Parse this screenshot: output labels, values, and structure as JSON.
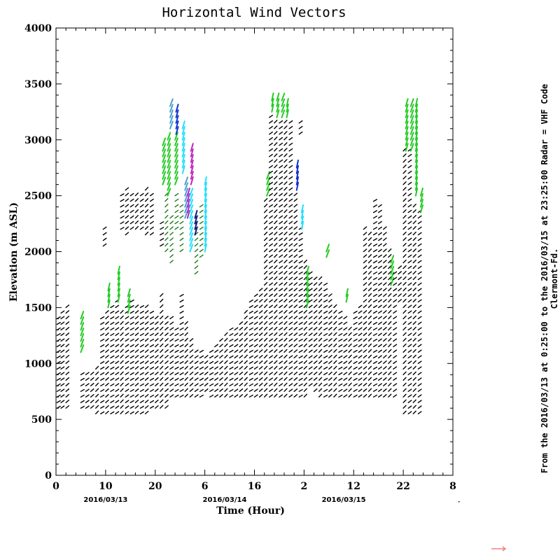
{
  "chart_data": {
    "type": "scatter",
    "title": "Horizontal Wind Vectors",
    "xlabel": "Time (Hour)",
    "ylabel": "Elevation (m ASL)",
    "x_ticks": [
      "0",
      "10",
      "20",
      "6",
      "16",
      "2",
      "12",
      "22",
      "8"
    ],
    "y_ticks": [
      "0",
      "500",
      "1000",
      "1500",
      "2000",
      "2500",
      "3000",
      "3500",
      "4000"
    ],
    "xlim": [
      0,
      80
    ],
    "ylim": [
      0,
      4000
    ],
    "date_labels": [
      {
        "text": "2016/03/13",
        "x": 10
      },
      {
        "text": "2016/03/14",
        "x": 34
      },
      {
        "text": "2016/03/15",
        "x": 58
      }
    ],
    "side_note_1": "From the 2016/03/13 at  0:25:00 to the 2016/03/15 at 23:25:00 Radar = VHF Code",
    "side_note_2": "Clermont-Fd.",
    "grid": false,
    "legend": "none",
    "colors": {
      "black": "#000000",
      "dark_green": "#1a7a1a",
      "green": "#22cc22",
      "cyan": "#22e0ff",
      "steel_blue": "#4aa0d0",
      "blue": "#1030d0",
      "navy": "#101880",
      "magenta": "#c020c0",
      "reference_arrow": "#f08080"
    },
    "columns": [
      {
        "x": 0.2,
        "y0": 600,
        "y1": 1400,
        "color": "black"
      },
      {
        "x": 1.0,
        "y0": 600,
        "y1": 1450,
        "color": "black"
      },
      {
        "x": 2.0,
        "y0": 600,
        "y1": 1500,
        "color": "black"
      },
      {
        "x": 5.0,
        "y0": 1100,
        "y1": 1400,
        "color": "green"
      },
      {
        "x": 5.0,
        "y0": 600,
        "y1": 900,
        "color": "black"
      },
      {
        "x": 6.0,
        "y0": 600,
        "y1": 900,
        "color": "black"
      },
      {
        "x": 7.0,
        "y0": 600,
        "y1": 900,
        "color": "black"
      },
      {
        "x": 8.0,
        "y0": 550,
        "y1": 950,
        "color": "black"
      },
      {
        "x": 9.0,
        "y0": 550,
        "y1": 1400,
        "color": "black"
      },
      {
        "x": 9.5,
        "y0": 2050,
        "y1": 2200,
        "color": "black"
      },
      {
        "x": 10.0,
        "y0": 550,
        "y1": 1450,
        "color": "black"
      },
      {
        "x": 10.5,
        "y0": 1500,
        "y1": 1650,
        "color": "green"
      },
      {
        "x": 11.0,
        "y0": 550,
        "y1": 1500,
        "color": "black"
      },
      {
        "x": 12.0,
        "y0": 550,
        "y1": 1550,
        "color": "black"
      },
      {
        "x": 12.5,
        "y0": 1550,
        "y1": 1800,
        "color": "green"
      },
      {
        "x": 13.0,
        "y0": 550,
        "y1": 1450,
        "color": "black"
      },
      {
        "x": 13.0,
        "y0": 2200,
        "y1": 2500,
        "color": "black"
      },
      {
        "x": 14.0,
        "y0": 550,
        "y1": 1500,
        "color": "black"
      },
      {
        "x": 14.0,
        "y0": 2150,
        "y1": 2550,
        "color": "black"
      },
      {
        "x": 14.5,
        "y0": 1450,
        "y1": 1600,
        "color": "green"
      },
      {
        "x": 15.0,
        "y0": 550,
        "y1": 1550,
        "color": "black"
      },
      {
        "x": 15.0,
        "y0": 2200,
        "y1": 2500,
        "color": "black"
      },
      {
        "x": 16.0,
        "y0": 550,
        "y1": 1500,
        "color": "black"
      },
      {
        "x": 16.0,
        "y0": 2200,
        "y1": 2500,
        "color": "black"
      },
      {
        "x": 17.0,
        "y0": 550,
        "y1": 1500,
        "color": "black"
      },
      {
        "x": 17.0,
        "y0": 2200,
        "y1": 2500,
        "color": "black"
      },
      {
        "x": 18.0,
        "y0": 550,
        "y1": 1500,
        "color": "black"
      },
      {
        "x": 18.0,
        "y0": 2150,
        "y1": 2550,
        "color": "black"
      },
      {
        "x": 19.0,
        "y0": 600,
        "y1": 1450,
        "color": "black"
      },
      {
        "x": 19.0,
        "y0": 2150,
        "y1": 2500,
        "color": "black"
      },
      {
        "x": 20.0,
        "y0": 600,
        "y1": 1400,
        "color": "black"
      },
      {
        "x": 21.0,
        "y0": 600,
        "y1": 1600,
        "color": "black"
      },
      {
        "x": 21.0,
        "y0": 2050,
        "y1": 2250,
        "color": "black"
      },
      {
        "x": 21.5,
        "y0": 2600,
        "y1": 2950,
        "color": "green"
      },
      {
        "x": 22.0,
        "y0": 600,
        "y1": 1400,
        "color": "black"
      },
      {
        "x": 22.0,
        "y0": 2000,
        "y1": 2500,
        "color": "dark_green"
      },
      {
        "x": 22.5,
        "y0": 2500,
        "y1": 3000,
        "color": "green"
      },
      {
        "x": 23.0,
        "y0": 700,
        "y1": 1400,
        "color": "black"
      },
      {
        "x": 23.0,
        "y0": 1900,
        "y1": 2300,
        "color": "dark_green"
      },
      {
        "x": 23.0,
        "y0": 3100,
        "y1": 3300,
        "color": "steel_blue"
      },
      {
        "x": 24.0,
        "y0": 700,
        "y1": 1300,
        "color": "black"
      },
      {
        "x": 24.0,
        "y0": 2200,
        "y1": 2500,
        "color": "dark_green"
      },
      {
        "x": 24.0,
        "y0": 2600,
        "y1": 3000,
        "color": "green"
      },
      {
        "x": 24.2,
        "y0": 3050,
        "y1": 3250,
        "color": "blue"
      },
      {
        "x": 25.0,
        "y0": 700,
        "y1": 1600,
        "color": "black"
      },
      {
        "x": 25.0,
        "y0": 2000,
        "y1": 2400,
        "color": "dark_green"
      },
      {
        "x": 25.5,
        "y0": 2700,
        "y1": 3100,
        "color": "cyan"
      },
      {
        "x": 26.0,
        "y0": 700,
        "y1": 1350,
        "color": "black"
      },
      {
        "x": 26.0,
        "y0": 2300,
        "y1": 2600,
        "color": "steel_blue"
      },
      {
        "x": 26.5,
        "y0": 2300,
        "y1": 2500,
        "color": "magenta"
      },
      {
        "x": 27.0,
        "y0": 700,
        "y1": 1200,
        "color": "black"
      },
      {
        "x": 27.0,
        "y0": 2000,
        "y1": 2500,
        "color": "cyan"
      },
      {
        "x": 27.2,
        "y0": 2600,
        "y1": 2900,
        "color": "magenta"
      },
      {
        "x": 28.0,
        "y0": 700,
        "y1": 1100,
        "color": "black"
      },
      {
        "x": 28.0,
        "y0": 1800,
        "y1": 2300,
        "color": "dark_green"
      },
      {
        "x": 28.0,
        "y0": 2150,
        "y1": 2300,
        "color": "navy"
      },
      {
        "x": 29.0,
        "y0": 700,
        "y1": 1100,
        "color": "black"
      },
      {
        "x": 29.0,
        "y0": 1950,
        "y1": 2400,
        "color": "dark_green"
      },
      {
        "x": 30.0,
        "y0": 750,
        "y1": 1050,
        "color": "black"
      },
      {
        "x": 30.0,
        "y0": 2000,
        "y1": 2600,
        "color": "cyan"
      },
      {
        "x": 31.0,
        "y0": 700,
        "y1": 1100,
        "color": "black"
      },
      {
        "x": 32.0,
        "y0": 700,
        "y1": 1150,
        "color": "black"
      },
      {
        "x": 33.0,
        "y0": 700,
        "y1": 1200,
        "color": "black"
      },
      {
        "x": 34.0,
        "y0": 700,
        "y1": 1250,
        "color": "black"
      },
      {
        "x": 35.0,
        "y0": 700,
        "y1": 1300,
        "color": "black"
      },
      {
        "x": 36.0,
        "y0": 700,
        "y1": 1300,
        "color": "black"
      },
      {
        "x": 37.0,
        "y0": 700,
        "y1": 1350,
        "color": "black"
      },
      {
        "x": 38.0,
        "y0": 700,
        "y1": 1450,
        "color": "black"
      },
      {
        "x": 39.0,
        "y0": 700,
        "y1": 1550,
        "color": "black"
      },
      {
        "x": 40.0,
        "y0": 700,
        "y1": 1600,
        "color": "black"
      },
      {
        "x": 41.0,
        "y0": 700,
        "y1": 1650,
        "color": "black"
      },
      {
        "x": 42.0,
        "y0": 700,
        "y1": 2450,
        "color": "black"
      },
      {
        "x": 42.5,
        "y0": 2500,
        "y1": 2650,
        "color": "green"
      },
      {
        "x": 43.0,
        "y0": 700,
        "y1": 3200,
        "color": "black"
      },
      {
        "x": 43.5,
        "y0": 3250,
        "y1": 3350,
        "color": "green"
      },
      {
        "x": 44.0,
        "y0": 700,
        "y1": 3150,
        "color": "black"
      },
      {
        "x": 44.5,
        "y0": 3200,
        "y1": 3350,
        "color": "green"
      },
      {
        "x": 45.0,
        "y0": 700,
        "y1": 3150,
        "color": "black"
      },
      {
        "x": 45.5,
        "y0": 3200,
        "y1": 3350,
        "color": "green"
      },
      {
        "x": 46.0,
        "y0": 700,
        "y1": 3150,
        "color": "black"
      },
      {
        "x": 46.5,
        "y0": 3200,
        "y1": 3300,
        "color": "green"
      },
      {
        "x": 47.0,
        "y0": 700,
        "y1": 3150,
        "color": "black"
      },
      {
        "x": 48.0,
        "y0": 700,
        "y1": 2500,
        "color": "black"
      },
      {
        "x": 48.5,
        "y0": 2550,
        "y1": 2750,
        "color": "blue"
      },
      {
        "x": 49.0,
        "y0": 700,
        "y1": 2200,
        "color": "black"
      },
      {
        "x": 49.0,
        "y0": 3050,
        "y1": 3150,
        "color": "black"
      },
      {
        "x": 49.5,
        "y0": 2200,
        "y1": 2350,
        "color": "cyan"
      },
      {
        "x": 50.0,
        "y0": 700,
        "y1": 1900,
        "color": "black"
      },
      {
        "x": 50.5,
        "y0": 1500,
        "y1": 1800,
        "color": "green"
      },
      {
        "x": 51.0,
        "y0": 800,
        "y1": 1800,
        "color": "black"
      },
      {
        "x": 52.0,
        "y0": 750,
        "y1": 1750,
        "color": "black"
      },
      {
        "x": 53.0,
        "y0": 700,
        "y1": 1750,
        "color": "black"
      },
      {
        "x": 54.0,
        "y0": 700,
        "y1": 1700,
        "color": "black"
      },
      {
        "x": 54.5,
        "y0": 1950,
        "y1": 2000,
        "color": "green"
      },
      {
        "x": 55.0,
        "y0": 700,
        "y1": 1600,
        "color": "black"
      },
      {
        "x": 56.0,
        "y0": 700,
        "y1": 1500,
        "color": "black"
      },
      {
        "x": 57.0,
        "y0": 700,
        "y1": 1450,
        "color": "black"
      },
      {
        "x": 58.0,
        "y0": 700,
        "y1": 1400,
        "color": "black"
      },
      {
        "x": 58.5,
        "y0": 1550,
        "y1": 1600,
        "color": "green"
      },
      {
        "x": 59.0,
        "y0": 700,
        "y1": 1300,
        "color": "black"
      },
      {
        "x": 60.0,
        "y0": 700,
        "y1": 1450,
        "color": "black"
      },
      {
        "x": 61.0,
        "y0": 700,
        "y1": 1500,
        "color": "black"
      },
      {
        "x": 62.0,
        "y0": 700,
        "y1": 2200,
        "color": "black"
      },
      {
        "x": 63.0,
        "y0": 700,
        "y1": 2150,
        "color": "black"
      },
      {
        "x": 64.0,
        "y0": 700,
        "y1": 2450,
        "color": "black"
      },
      {
        "x": 65.0,
        "y0": 700,
        "y1": 2400,
        "color": "black"
      },
      {
        "x": 66.0,
        "y0": 700,
        "y1": 2200,
        "color": "black"
      },
      {
        "x": 67.0,
        "y0": 700,
        "y1": 2000,
        "color": "black"
      },
      {
        "x": 67.5,
        "y0": 1700,
        "y1": 1900,
        "color": "green"
      },
      {
        "x": 68.0,
        "y0": 700,
        "y1": 1800,
        "color": "black"
      },
      {
        "x": 69.0,
        "y0": 1550,
        "y1": 1850,
        "color": "black"
      },
      {
        "x": 70.0,
        "y0": 550,
        "y1": 2900,
        "color": "black"
      },
      {
        "x": 70.5,
        "y0": 2900,
        "y1": 3300,
        "color": "green"
      },
      {
        "x": 71.0,
        "y0": 550,
        "y1": 2900,
        "color": "black"
      },
      {
        "x": 71.5,
        "y0": 2900,
        "y1": 3300,
        "color": "green"
      },
      {
        "x": 72.0,
        "y0": 550,
        "y1": 2400,
        "color": "black"
      },
      {
        "x": 72.5,
        "y0": 2500,
        "y1": 3300,
        "color": "green"
      },
      {
        "x": 73.0,
        "y0": 550,
        "y1": 2350,
        "color": "black"
      },
      {
        "x": 73.5,
        "y0": 2350,
        "y1": 2500,
        "color": "green"
      }
    ]
  }
}
